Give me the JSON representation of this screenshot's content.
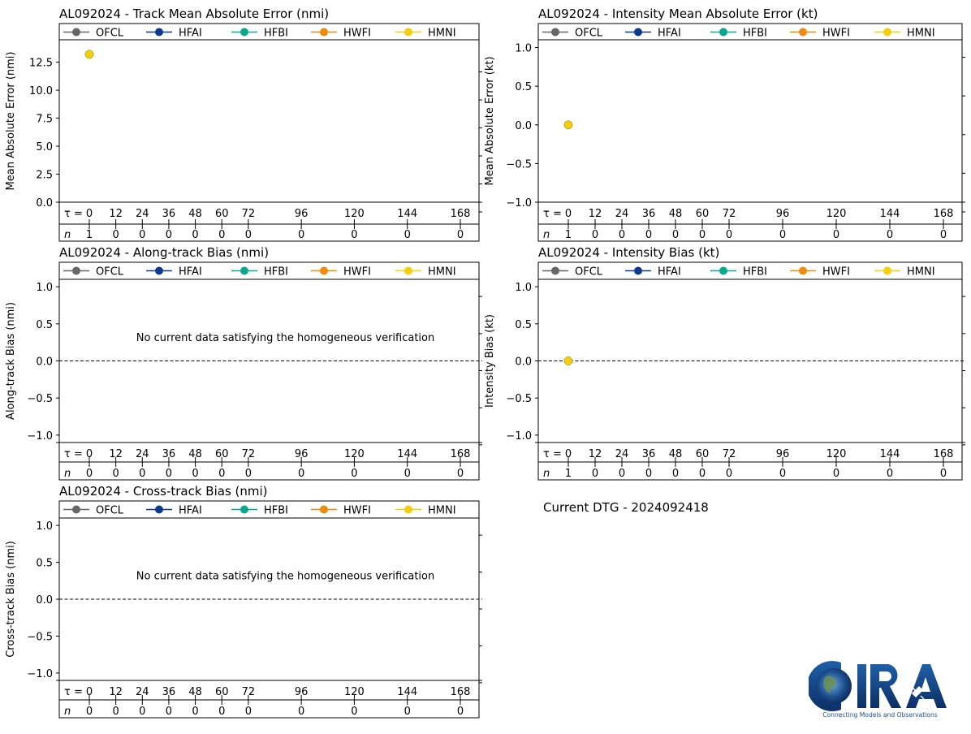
{
  "colors": {
    "OFCL": "#666666",
    "HFAI": "#0d3a8c",
    "HFBI": "#0aa88e",
    "HWFI": "#ef8a0c",
    "HMNI": "#f5cf0f"
  },
  "legend": [
    "OFCL",
    "HFAI",
    "HFBI",
    "HWFI",
    "HMNI"
  ],
  "tau_label": "τ = ",
  "n_label": "n",
  "footer": {
    "dtg": "Current DTG - 2024092418",
    "logo_text": "CIRA",
    "logo_tagline": "Connecting Models and Observations"
  },
  "chart_data": [
    {
      "id": "track_mae",
      "type": "scatter",
      "title": "AL092024 - Track Mean Absolute Error (nmi)",
      "ylabel": "Mean Absolute Error (nmi)",
      "ylim": [
        0,
        14.5
      ],
      "yticks": [
        "0.0",
        "2.5",
        "5.0",
        "7.5",
        "10.0",
        "12.5"
      ],
      "ytick_values": [
        0,
        2.5,
        5,
        7.5,
        10,
        12.5
      ],
      "zero_line": false,
      "message": "",
      "taus": [
        0,
        12,
        24,
        36,
        48,
        60,
        72,
        96,
        120,
        144,
        168
      ],
      "tau_labels": [
        "0",
        "12",
        "24",
        "36",
        "48",
        "60",
        "72",
        "96",
        "120",
        "144",
        "168"
      ],
      "n": [
        "1",
        "0",
        "0",
        "0",
        "0",
        "0",
        "0",
        "0",
        "0",
        "0",
        "0"
      ],
      "series": [
        {
          "name": "OFCL",
          "points": [
            [
              0,
              13.2
            ]
          ]
        },
        {
          "name": "HFAI",
          "points": [
            [
              0,
              13.2
            ]
          ]
        },
        {
          "name": "HFBI",
          "points": [
            [
              0,
              13.2
            ]
          ]
        },
        {
          "name": "HWFI",
          "points": [
            [
              0,
              13.2
            ]
          ]
        },
        {
          "name": "HMNI",
          "points": [
            [
              0,
              13.2
            ]
          ]
        }
      ]
    },
    {
      "id": "intensity_mae",
      "type": "scatter",
      "title": "AL092024 - Intensity Mean Absolute Error (kt)",
      "ylabel": "Mean Absolute Error (kt)",
      "ylim": [
        -1.0,
        1.1
      ],
      "yticks": [
        "−1.0",
        "−0.5",
        "0.0",
        "0.5",
        "1.0"
      ],
      "ytick_values": [
        -1,
        -0.5,
        0,
        0.5,
        1
      ],
      "zero_line": false,
      "message": "",
      "taus": [
        0,
        12,
        24,
        36,
        48,
        60,
        72,
        96,
        120,
        144,
        168
      ],
      "tau_labels": [
        "0",
        "12",
        "24",
        "36",
        "48",
        "60",
        "72",
        "96",
        "120",
        "144",
        "168"
      ],
      "n": [
        "1",
        "0",
        "0",
        "0",
        "0",
        "0",
        "0",
        "0",
        "0",
        "0",
        "0"
      ],
      "series": [
        {
          "name": "OFCL",
          "points": [
            [
              0,
              0
            ]
          ]
        },
        {
          "name": "HFAI",
          "points": [
            [
              0,
              0
            ]
          ]
        },
        {
          "name": "HFBI",
          "points": [
            [
              0,
              0
            ]
          ]
        },
        {
          "name": "HWFI",
          "points": [
            [
              0,
              0
            ]
          ]
        },
        {
          "name": "HMNI",
          "points": [
            [
              0,
              0
            ]
          ]
        }
      ]
    },
    {
      "id": "along_bias",
      "type": "scatter",
      "title": "AL092024 - Along-track Bias (nmi)",
      "ylabel": "Along-track Bias (nmi)",
      "ylim": [
        -1.1,
        1.1
      ],
      "yticks": [
        "−1.0",
        "−0.5",
        "0.0",
        "0.5",
        "1.0"
      ],
      "ytick_values": [
        -1,
        -0.5,
        0,
        0.5,
        1
      ],
      "zero_line": true,
      "message": "No current data satisfying the homogeneous verification",
      "taus": [
        0,
        12,
        24,
        36,
        48,
        60,
        72,
        96,
        120,
        144,
        168
      ],
      "tau_labels": [
        "0",
        "12",
        "24",
        "36",
        "48",
        "60",
        "72",
        "96",
        "120",
        "144",
        "168"
      ],
      "n": [
        "0",
        "0",
        "0",
        "0",
        "0",
        "0",
        "0",
        "0",
        "0",
        "0",
        "0"
      ],
      "series": []
    },
    {
      "id": "intensity_bias",
      "type": "scatter",
      "title": "AL092024 - Intensity Bias (kt)",
      "ylabel": "Intensity Bias (kt)",
      "ylim": [
        -1.1,
        1.1
      ],
      "yticks": [
        "−1.0",
        "−0.5",
        "0.0",
        "0.5",
        "1.0"
      ],
      "ytick_values": [
        -1,
        -0.5,
        0,
        0.5,
        1
      ],
      "zero_line": true,
      "message": "",
      "taus": [
        0,
        12,
        24,
        36,
        48,
        60,
        72,
        96,
        120,
        144,
        168
      ],
      "tau_labels": [
        "0",
        "12",
        "24",
        "36",
        "48",
        "60",
        "72",
        "96",
        "120",
        "144",
        "168"
      ],
      "n": [
        "1",
        "0",
        "0",
        "0",
        "0",
        "0",
        "0",
        "0",
        "0",
        "0",
        "0"
      ],
      "series": [
        {
          "name": "OFCL",
          "points": [
            [
              0,
              0
            ]
          ]
        },
        {
          "name": "HFAI",
          "points": [
            [
              0,
              0
            ]
          ]
        },
        {
          "name": "HFBI",
          "points": [
            [
              0,
              0
            ]
          ]
        },
        {
          "name": "HWFI",
          "points": [
            [
              0,
              0
            ]
          ]
        },
        {
          "name": "HMNI",
          "points": [
            [
              0,
              0
            ]
          ]
        }
      ]
    },
    {
      "id": "cross_bias",
      "type": "scatter",
      "title": "AL092024 - Cross-track Bias (nmi)",
      "ylabel": "Cross-track Bias (nmi)",
      "ylim": [
        -1.1,
        1.1
      ],
      "yticks": [
        "−1.0",
        "−0.5",
        "0.0",
        "0.5",
        "1.0"
      ],
      "ytick_values": [
        -1,
        -0.5,
        0,
        0.5,
        1
      ],
      "zero_line": true,
      "message": "No current data satisfying the homogeneous verification",
      "taus": [
        0,
        12,
        24,
        36,
        48,
        60,
        72,
        96,
        120,
        144,
        168
      ],
      "tau_labels": [
        "0",
        "12",
        "24",
        "36",
        "48",
        "60",
        "72",
        "96",
        "120",
        "144",
        "168"
      ],
      "n": [
        "0",
        "0",
        "0",
        "0",
        "0",
        "0",
        "0",
        "0",
        "0",
        "0",
        "0"
      ],
      "series": []
    }
  ]
}
